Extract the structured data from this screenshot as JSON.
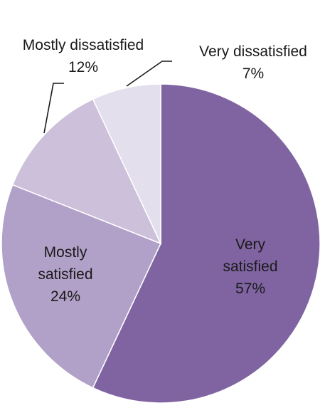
{
  "chart_data": {
    "type": "pie",
    "title": "",
    "start": "12 o'clock, clockwise",
    "slices": [
      {
        "label_lines": [
          "Very",
          "satisfied"
        ],
        "percent_label": "57%",
        "value": 57,
        "color": "#8064a2"
      },
      {
        "label_lines": [
          "Mostly",
          "satisfied"
        ],
        "percent_label": "24%",
        "value": 24,
        "color": "#b1a0c7"
      },
      {
        "label_lines": [
          "Mostly dissatisfied"
        ],
        "percent_label": "12%",
        "value": 12,
        "color": "#ccc0da"
      },
      {
        "label_lines": [
          "Very dissatisfied"
        ],
        "percent_label": "7%",
        "value": 7,
        "color": "#e4dfec"
      }
    ]
  }
}
